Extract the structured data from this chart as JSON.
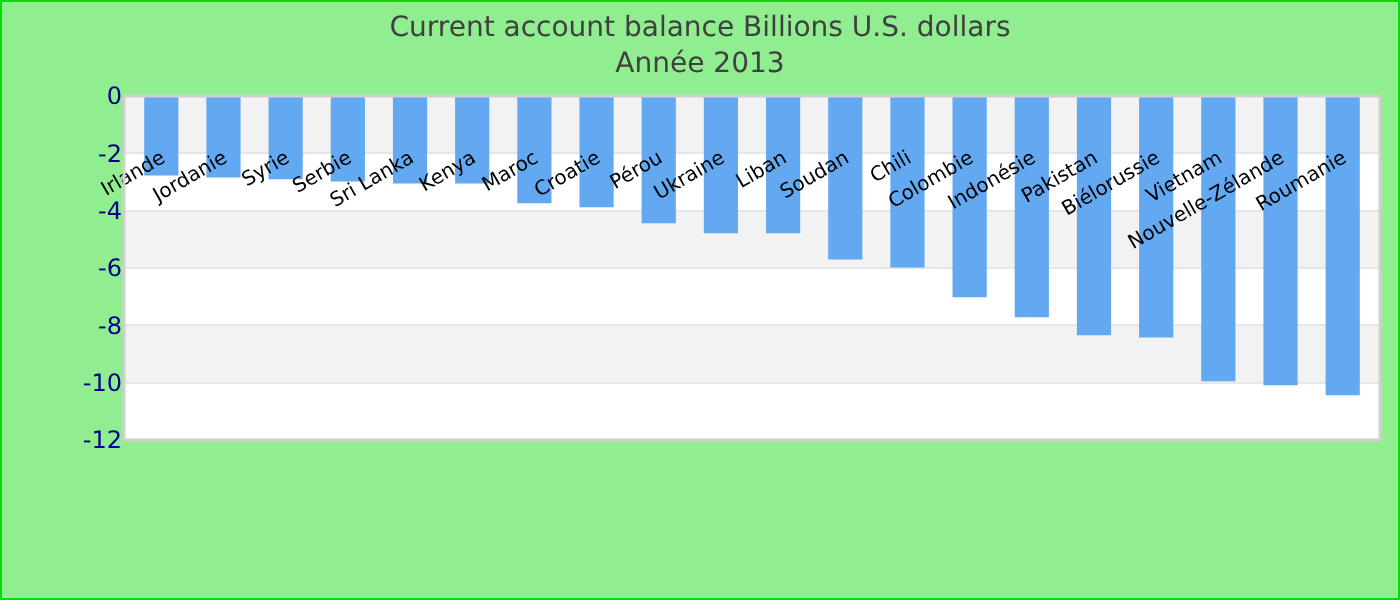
{
  "chart_data": {
    "type": "bar",
    "title": "Current account balance Billions U.S. dollars",
    "subtitle": "Année 2013",
    "categories": [
      "Irlande",
      "Jordanie",
      "Syrie",
      "Serbie",
      "Sri Lanka",
      "Kenya",
      "Maroc",
      "Croatie",
      "Pérou",
      "Ukraine",
      "Liban",
      "Soudan",
      "Chili",
      "Colombie",
      "Indonésie",
      "Pakistan",
      "Biélorussie",
      "Vietnam",
      "Nouvelle-Zélande",
      "Roumanie"
    ],
    "values": [
      -2.77,
      -2.84,
      -2.9,
      -2.98,
      -3.05,
      -3.05,
      -3.74,
      -3.88,
      -4.44,
      -4.79,
      -4.79,
      -5.7,
      -5.98,
      -7.02,
      -7.72,
      -8.35,
      -8.42,
      -9.95,
      -10.09,
      -10.44
    ],
    "color": "#62a9f2",
    "ylim": [
      -12,
      0
    ],
    "yticks": [
      -12,
      -10,
      -8,
      -6,
      -4,
      -2,
      0
    ],
    "grid": "y"
  }
}
